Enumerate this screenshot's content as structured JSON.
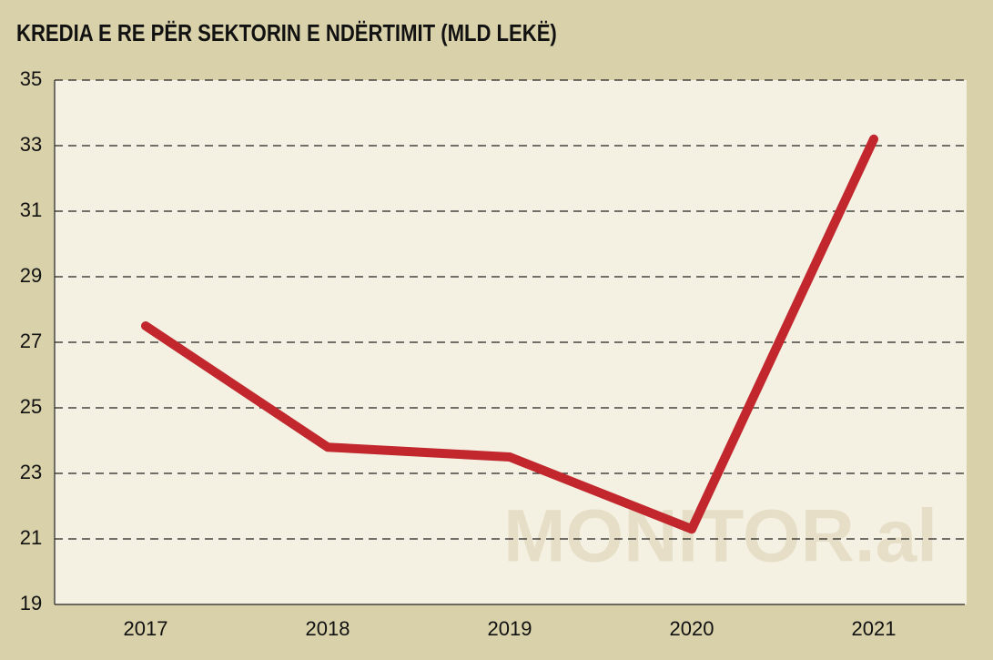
{
  "chart_data": {
    "type": "line",
    "title": "KREDIA E RE PËR SEKTORIN E NDËRTIMIT (MLD LEKË)",
    "watermark": "MONITOR.al",
    "categories": [
      "2017",
      "2018",
      "2019",
      "2020",
      "2021"
    ],
    "values": [
      27.5,
      23.8,
      23.5,
      21.3,
      33.2
    ],
    "color": "#c1272d",
    "ylim": [
      19,
      35
    ],
    "yticks": [
      19,
      21,
      23,
      25,
      27,
      29,
      31,
      33,
      35
    ],
    "grid": true
  }
}
